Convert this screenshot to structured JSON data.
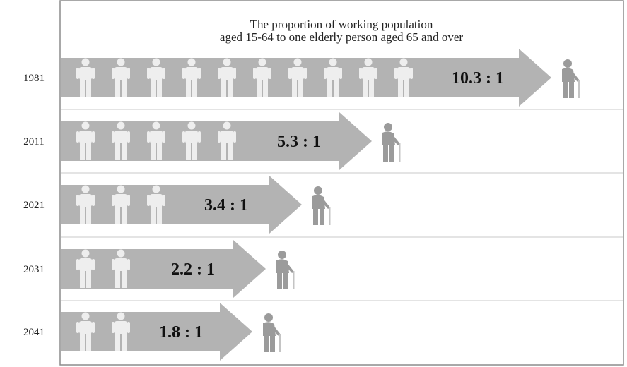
{
  "chart_data": {
    "type": "bar",
    "title": "The proportion of working population",
    "subtitle": "aged 15-64 to one elderly person aged 65 and over",
    "categories": [
      "1981",
      "2011",
      "2021",
      "2031",
      "2041"
    ],
    "values": [
      10.3,
      5.3,
      3.4,
      2.2,
      1.8
    ],
    "ratio_labels": [
      "10.3 : 1",
      "5.3 : 1",
      "3.4 : 1",
      "2.2 : 1",
      "1.8 : 1"
    ],
    "worker_icon_counts": [
      10,
      5,
      3,
      2,
      2
    ],
    "icon_names": {
      "worker": "working-person-icon",
      "elderly": "elderly-person-icon"
    },
    "colors": {
      "arrow": "#b3b3b3",
      "icon": "#eeeeee",
      "elderly": "#9b9b9b",
      "frame": "#8c8c8c",
      "divider": "#c8c8c8"
    }
  }
}
